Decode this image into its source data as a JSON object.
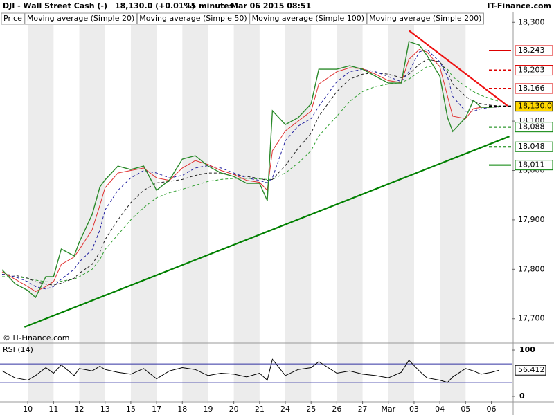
{
  "chart_data": {
    "type": "line",
    "title": "DJI - Wall Street Cash (-)",
    "last_price": "18,130.0 (+0.01%)",
    "interval": "15 minutes",
    "date": "Mar 06 2015 08:51",
    "source": "IT-Finance.com",
    "copyright": "© IT-Finance.com",
    "x": [
      -1.0,
      -0.5,
      0,
      0.3,
      0.7,
      1.0,
      1.3,
      1.8,
      2.0,
      2.5,
      2.8,
      3.0,
      3.5,
      4.0,
      4.5,
      5.0,
      5.5,
      6.0,
      6.5,
      7.0,
      7.5,
      8.0,
      8.5,
      9.0,
      9.3,
      9.5,
      10.0,
      10.5,
      11.0,
      11.3,
      12.0,
      12.5,
      13.0,
      13.5,
      14.0,
      14.5,
      14.8,
      15.2,
      15.5,
      16.0,
      16.3,
      16.5,
      17.0,
      17.3,
      17.6,
      18.0,
      18.3
    ],
    "xlim": [
      -1.08,
      18.82
    ],
    "xticks": [
      {
        "value": 0,
        "label": "10"
      },
      {
        "value": 1,
        "label": "11"
      },
      {
        "value": 2,
        "label": "12"
      },
      {
        "value": 3,
        "label": "13"
      },
      {
        "value": 4,
        "label": "15"
      },
      {
        "value": 5,
        "label": "17"
      },
      {
        "value": 6,
        "label": "18"
      },
      {
        "value": 7,
        "label": "19"
      },
      {
        "value": 8,
        "label": "20"
      },
      {
        "value": 9,
        "label": "21"
      },
      {
        "value": 10,
        "label": "24"
      },
      {
        "value": 11,
        "label": "25"
      },
      {
        "value": 12,
        "label": "26"
      },
      {
        "value": 13,
        "label": "27"
      },
      {
        "value": 14,
        "label": "Mar"
      },
      {
        "value": 15,
        "label": "03"
      },
      {
        "value": 16,
        "label": "04"
      },
      {
        "value": 17,
        "label": "05"
      },
      {
        "value": 18,
        "label": "06"
      }
    ],
    "ylim": [
      17652,
      18320
    ],
    "yticks": [
      {
        "value": 18300,
        "label": "18,300"
      },
      {
        "value": 18100,
        "label": "18,100"
      },
      {
        "value": 18000,
        "label": "18,000"
      },
      {
        "value": 17900,
        "label": "17,900"
      },
      {
        "value": 17800,
        "label": "17,800"
      },
      {
        "value": 17700,
        "label": "17,700"
      }
    ],
    "grid": true,
    "series": [
      {
        "name": "Price",
        "color": "#2a8a2a",
        "dash": false,
        "values": [
          17799,
          17771,
          17757,
          17743,
          17785,
          17785,
          17841,
          17827,
          17855,
          17911,
          17967,
          17981,
          18009,
          18002,
          18009,
          17960,
          17981,
          18023,
          18030,
          18009,
          17995,
          17988,
          17974,
          17974,
          17939,
          18121,
          18093,
          18107,
          18135,
          18205,
          18205,
          18212,
          18205,
          18191,
          18177,
          18177,
          18261,
          18254,
          18233,
          18191,
          18107,
          18079,
          18107,
          18142,
          18128,
          18128,
          18130
        ]
      },
      {
        "name": "Moving average (Simple 20)",
        "color": "#e03030",
        "dash": false,
        "values": [
          17795,
          17780,
          17765,
          17755,
          17765,
          17775,
          17810,
          17825,
          17840,
          17880,
          17930,
          17965,
          17995,
          18000,
          18005,
          17985,
          17980,
          18005,
          18020,
          18012,
          18000,
          17992,
          17980,
          17976,
          17960,
          18040,
          18080,
          18100,
          18120,
          18175,
          18200,
          18208,
          18206,
          18195,
          18182,
          18178,
          18225,
          18245,
          18240,
          18210,
          18150,
          18110,
          18105,
          18125,
          18128,
          18128,
          18129
        ]
      },
      {
        "name": "Moving average (Simple 50)",
        "color": "#2020a0",
        "dash": true,
        "values": [
          17790,
          17785,
          17775,
          17765,
          17760,
          17765,
          17780,
          17800,
          17815,
          17840,
          17880,
          17920,
          17960,
          17985,
          18000,
          17995,
          17985,
          17990,
          18005,
          18010,
          18005,
          17995,
          17985,
          17980,
          17975,
          17985,
          18060,
          18090,
          18105,
          18130,
          18180,
          18200,
          18205,
          18200,
          18190,
          18180,
          18200,
          18240,
          18245,
          18220,
          18190,
          18150,
          18120,
          18120,
          18125,
          18128,
          18128
        ]
      },
      {
        "name": "Moving average (Simple 100)",
        "color": "#202020",
        "dash": true,
        "values": [
          17790,
          17788,
          17782,
          17775,
          17770,
          17768,
          17772,
          17782,
          17792,
          17810,
          17835,
          17860,
          17900,
          17935,
          17960,
          17975,
          17978,
          17982,
          17990,
          17995,
          17995,
          17992,
          17988,
          17984,
          17980,
          17982,
          18010,
          18045,
          18075,
          18110,
          18160,
          18185,
          18195,
          18198,
          18195,
          18188,
          18195,
          18215,
          18225,
          18220,
          18200,
          18175,
          18150,
          18140,
          18135,
          18132,
          18131
        ]
      },
      {
        "name": "Moving average (Simple 200)",
        "color": "#30a030",
        "dash": true,
        "values": [
          17785,
          17785,
          17782,
          17778,
          17775,
          17774,
          17776,
          17780,
          17785,
          17800,
          17820,
          17840,
          17870,
          17900,
          17925,
          17945,
          17955,
          17962,
          17970,
          17978,
          17982,
          17984,
          17984,
          17983,
          17982,
          17982,
          17995,
          18015,
          18040,
          18070,
          18110,
          18140,
          18160,
          18170,
          18175,
          18178,
          18185,
          18200,
          18210,
          18212,
          18205,
          18190,
          18170,
          18160,
          18152,
          18145,
          18140
        ]
      }
    ],
    "trendlines": [
      {
        "color": "#008000",
        "x": [
          -0.13,
          18.7
        ],
        "values": [
          17683,
          18069
        ]
      },
      {
        "color": "#ee1111",
        "x": [
          14.81,
          18.63
        ],
        "values": [
          18283,
          18131
        ]
      }
    ],
    "levels": [
      {
        "value": 18243,
        "label": "18,243",
        "color": "#dd0000",
        "dash": false
      },
      {
        "value": 18203,
        "label": "18,203",
        "color": "#dd0000",
        "dash": true
      },
      {
        "value": 18166,
        "label": "18,166",
        "color": "#dd0000",
        "dash": true
      },
      {
        "value": 18130,
        "label": "18,130.0",
        "color": "#000000",
        "dash": true
      },
      {
        "value": 18088,
        "label": "18,088",
        "color": "#008000",
        "dash": true
      },
      {
        "value": 18048,
        "label": "18,048",
        "color": "#008000",
        "dash": true
      },
      {
        "value": 18011,
        "label": "18,011",
        "color": "#008000",
        "dash": false
      }
    ],
    "rsi": {
      "name": "RSI (14)",
      "color": "#000000",
      "ylim": [
        -10.4,
        112
      ],
      "yticks": [
        100,
        0
      ],
      "levels": [
        70,
        30
      ],
      "value_label": "56.412",
      "values": [
        55,
        40,
        35,
        45,
        62,
        50,
        68,
        45,
        60,
        55,
        65,
        58,
        52,
        48,
        60,
        38,
        55,
        62,
        58,
        45,
        50,
        48,
        42,
        50,
        35,
        80,
        45,
        58,
        62,
        75,
        50,
        55,
        48,
        45,
        40,
        52,
        78,
        55,
        40,
        35,
        30,
        42,
        60,
        55,
        48,
        52,
        56.412
      ]
    }
  }
}
